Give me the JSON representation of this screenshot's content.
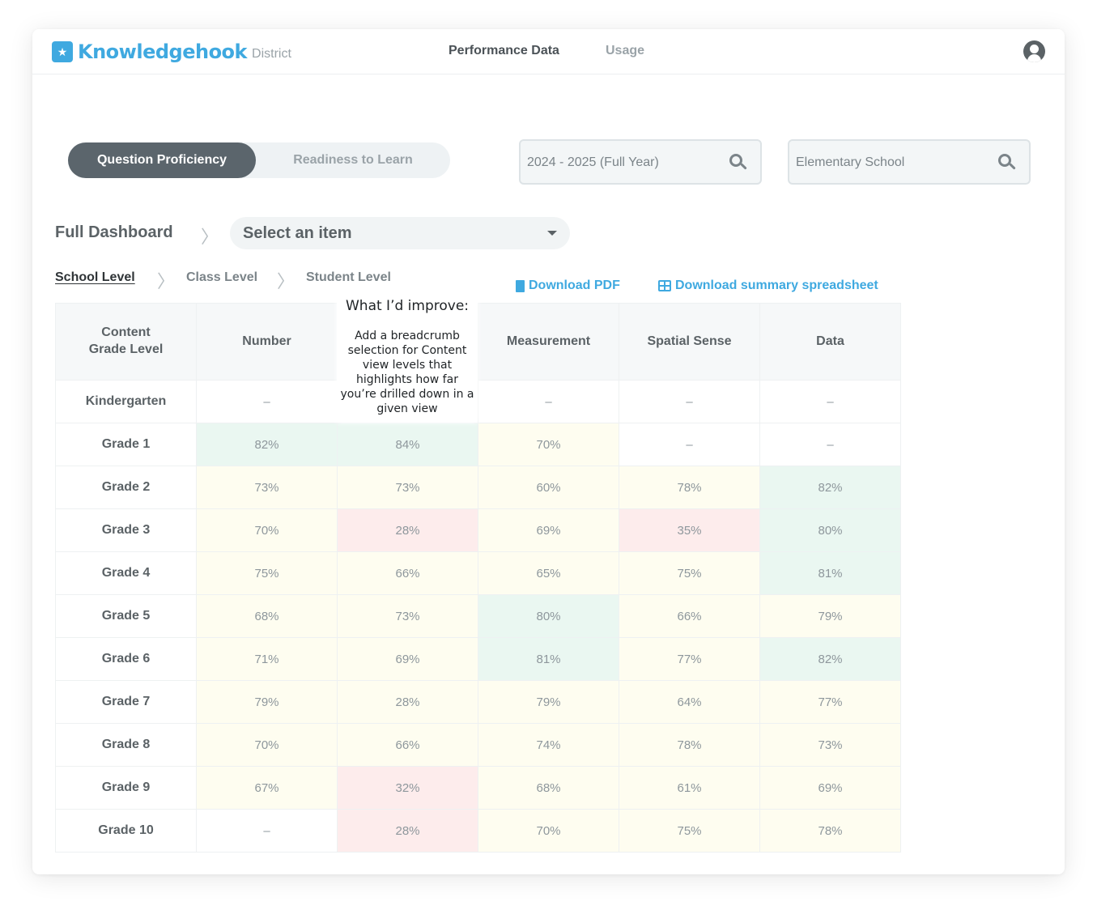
{
  "header": {
    "logo_text": "Knowledgehook",
    "logo_sub": "District",
    "nav": [
      "Performance Data",
      "Usage"
    ]
  },
  "toggle": {
    "active": "Question Proficiency",
    "inactive": "Readiness to Learn"
  },
  "filters": {
    "year": "2024 - 2025 (Full Year)",
    "school": "Elementary School"
  },
  "dashboard": {
    "title": "Full Dashboard",
    "select_value": "Select an item"
  },
  "levels": [
    "School Level",
    "Class Level",
    "Student Level"
  ],
  "downloads": {
    "pdf": "Download PDF",
    "spreadsheet": "Download summary spreadsheet"
  },
  "table": {
    "corner_line1": "Content",
    "corner_line2": "Grade Level",
    "columns": [
      "Number",
      "",
      "Measurement",
      "Spatial Sense",
      "Data"
    ],
    "rows": [
      {
        "label": "Kindergarten",
        "cells": [
          "–",
          "",
          "–",
          "–",
          "–"
        ],
        "tones": [
          "none",
          "none",
          "none",
          "none",
          "none"
        ]
      },
      {
        "label": "Grade 1",
        "cells": [
          "82%",
          "84%",
          "70%",
          "–",
          "–"
        ],
        "tones": [
          "green",
          "green",
          "yellow",
          "none",
          "none"
        ]
      },
      {
        "label": "Grade 2",
        "cells": [
          "73%",
          "73%",
          "60%",
          "78%",
          "82%"
        ],
        "tones": [
          "yellow",
          "yellow",
          "yellow",
          "yellow",
          "green"
        ]
      },
      {
        "label": "Grade 3",
        "cells": [
          "70%",
          "28%",
          "69%",
          "35%",
          "80%"
        ],
        "tones": [
          "yellow",
          "red",
          "yellow",
          "red",
          "green"
        ]
      },
      {
        "label": "Grade 4",
        "cells": [
          "75%",
          "66%",
          "65%",
          "75%",
          "81%"
        ],
        "tones": [
          "yellow",
          "yellow",
          "yellow",
          "yellow",
          "green"
        ]
      },
      {
        "label": "Grade 5",
        "cells": [
          "68%",
          "73%",
          "80%",
          "66%",
          "79%"
        ],
        "tones": [
          "yellow",
          "yellow",
          "green",
          "yellow",
          "yellow"
        ]
      },
      {
        "label": "Grade 6",
        "cells": [
          "71%",
          "69%",
          "81%",
          "77%",
          "82%"
        ],
        "tones": [
          "yellow",
          "yellow",
          "green",
          "yellow",
          "green"
        ]
      },
      {
        "label": "Grade 7",
        "cells": [
          "79%",
          "28%",
          "79%",
          "64%",
          "77%"
        ],
        "tones": [
          "yellow",
          "yellow",
          "yellow",
          "yellow",
          "yellow"
        ]
      },
      {
        "label": "Grade 8",
        "cells": [
          "70%",
          "66%",
          "74%",
          "78%",
          "73%"
        ],
        "tones": [
          "yellow",
          "yellow",
          "yellow",
          "yellow",
          "yellow"
        ]
      },
      {
        "label": "Grade 9",
        "cells": [
          "67%",
          "32%",
          "68%",
          "61%",
          "69%"
        ],
        "tones": [
          "yellow",
          "red",
          "yellow",
          "yellow",
          "yellow"
        ]
      },
      {
        "label": "Grade 10",
        "cells": [
          "–",
          "28%",
          "70%",
          "75%",
          "78%"
        ],
        "tones": [
          "none",
          "red",
          "yellow",
          "yellow",
          "yellow"
        ]
      }
    ]
  },
  "note": {
    "title": "What I’d improve:",
    "body": "Add a breadcrumb selection for Content view levels that highlights how far you’re drilled down in a given view"
  },
  "colors": {
    "brand": "#3fa9e0",
    "green": "#eaf7f1",
    "yellow": "#fefdf0",
    "red": "#fdecec"
  }
}
